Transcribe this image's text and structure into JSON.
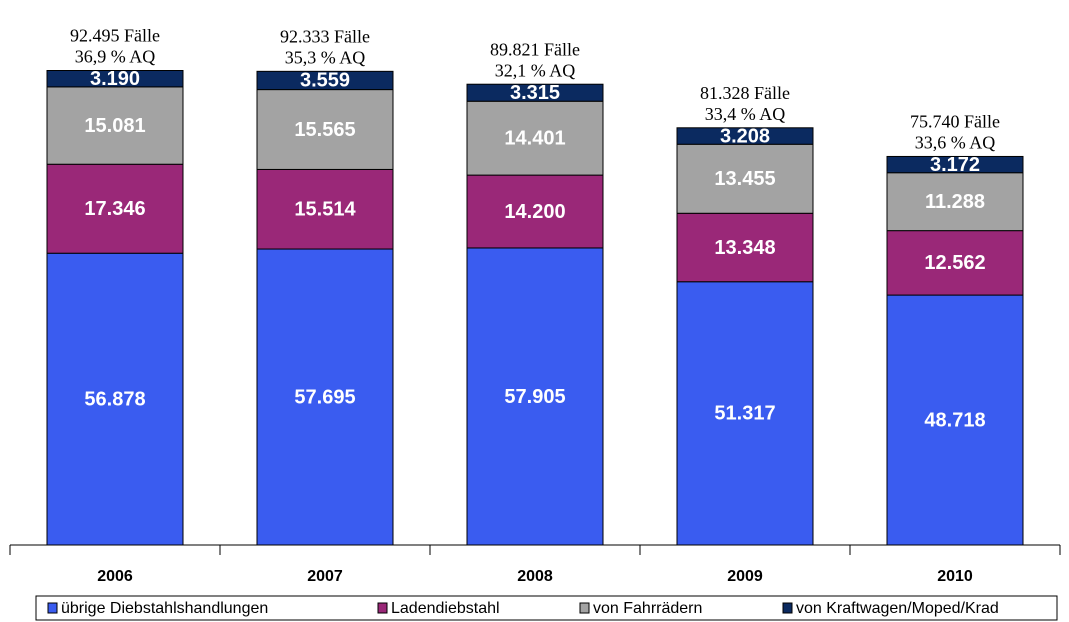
{
  "chart_data": {
    "type": "stacked_bar",
    "categories": [
      "2006",
      "2007",
      "2008",
      "2009",
      "2010"
    ],
    "series": [
      {
        "name": "übrige Diebstahlshandlungen",
        "color": "#3a5cf0",
        "values": [
          56878,
          57695,
          57905,
          51317,
          48718
        ],
        "value_labels": [
          "56.878",
          "57.695",
          "57.905",
          "51.317",
          "48.718"
        ]
      },
      {
        "name": "Ladendiebstahl",
        "color": "#9a2878",
        "values": [
          17346,
          15514,
          14200,
          13348,
          12562
        ],
        "value_labels": [
          "17.346",
          "15.514",
          "14.200",
          "13.348",
          "12.562"
        ]
      },
      {
        "name": "von Fahrrädern",
        "color": "#a3a3a3",
        "values": [
          15081,
          15565,
          14401,
          13455,
          11288
        ],
        "value_labels": [
          "15.081",
          "15.565",
          "14.401",
          "13.455",
          "11.288"
        ]
      },
      {
        "name": "von Kraftwagen/Moped/Krad",
        "color": "#0b2a60",
        "values": [
          3190,
          3559,
          3315,
          3208,
          3172
        ],
        "value_labels": [
          "3.190",
          "3.559",
          "3.315",
          "3.208",
          "3.172"
        ]
      }
    ],
    "annotations": [
      [
        "92.495 Fälle",
        "36,9 % AQ"
      ],
      [
        "92.333 Fälle",
        "35,3 % AQ"
      ],
      [
        "89.821 Fälle",
        "32,1 % AQ"
      ],
      [
        "81.328 Fälle",
        "33,4 % AQ"
      ],
      [
        "75.740 Fälle",
        "33,6 % AQ"
      ]
    ],
    "ylim": [
      0,
      100000
    ],
    "legend": "bottom"
  }
}
